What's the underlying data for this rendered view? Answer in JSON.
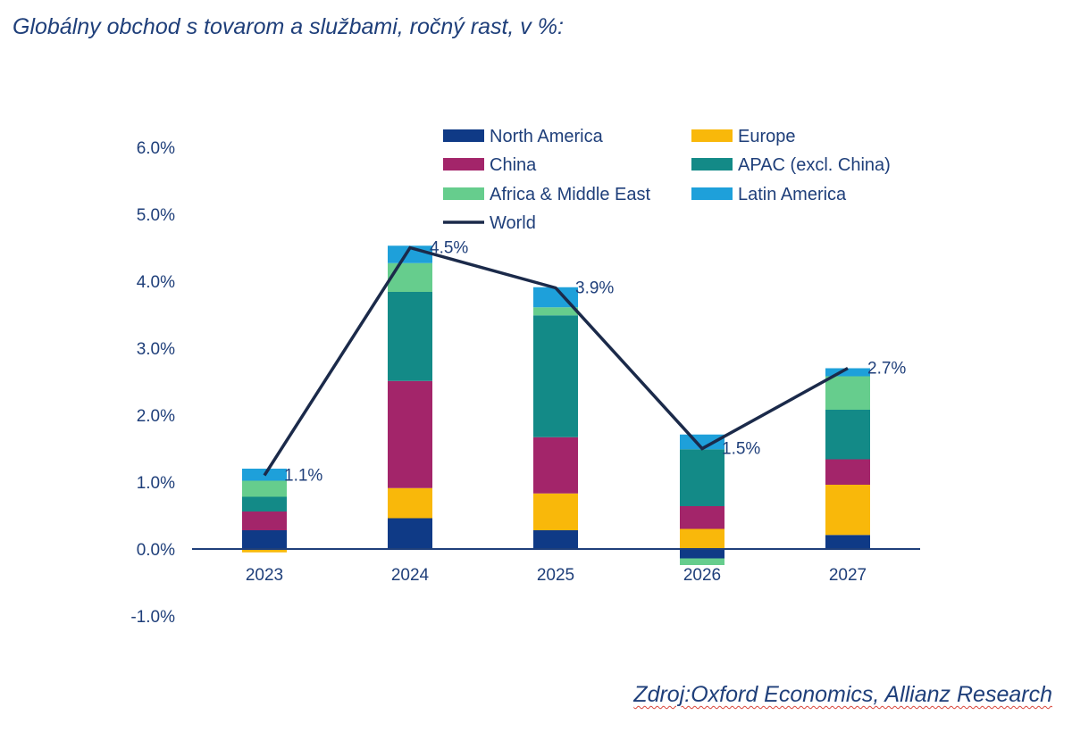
{
  "title": "Globálny obchod s tovarom a službami, ročný rast, v %:",
  "source": "Zdroj:Oxford Economics, Allianz Research",
  "colors": {
    "text": "#1f3f7a",
    "axis": "#1f3f7a",
    "world_line": "#1b2a4a"
  },
  "chart_data": {
    "type": "bar",
    "stacked": true,
    "categories": [
      "2023",
      "2024",
      "2025",
      "2026",
      "2027"
    ],
    "ylim": [
      -1.0,
      6.0
    ],
    "yticks": [
      6.0,
      5.0,
      4.0,
      3.0,
      2.0,
      1.0,
      0.0,
      -1.0
    ],
    "ytick_labels": [
      "6.0%",
      "5.0%",
      "4.0%",
      "3.0%",
      "2.0%",
      "1.0%",
      "0.0%",
      "-1.0%"
    ],
    "grid": false,
    "legend_position": "top",
    "series": [
      {
        "name": "North America",
        "color": "#0f3a86",
        "values": [
          0.28,
          0.46,
          0.28,
          -0.14,
          0.21
        ]
      },
      {
        "name": "Europe",
        "color": "#f9b80a",
        "values": [
          -0.05,
          0.45,
          0.55,
          0.3,
          0.75
        ]
      },
      {
        "name": "China",
        "color": "#a3256a",
        "values": [
          0.28,
          1.6,
          0.84,
          0.34,
          0.38
        ]
      },
      {
        "name": "APAC (excl. China)",
        "color": "#138a87",
        "values": [
          0.22,
          1.33,
          1.82,
          0.85,
          0.74
        ]
      },
      {
        "name": "Africa & Middle East",
        "color": "#66cd8d",
        "values": [
          0.24,
          0.43,
          0.12,
          -0.1,
          0.5
        ]
      },
      {
        "name": "Latin America",
        "color": "#1ea0da",
        "values": [
          0.18,
          0.26,
          0.3,
          0.22,
          0.12
        ]
      }
    ],
    "line": {
      "name": "World",
      "values": [
        1.1,
        4.5,
        3.9,
        1.5,
        2.7
      ],
      "labels": [
        "1.1%",
        "4.5%",
        "3.9%",
        "1.5%",
        "2.7%"
      ]
    }
  }
}
